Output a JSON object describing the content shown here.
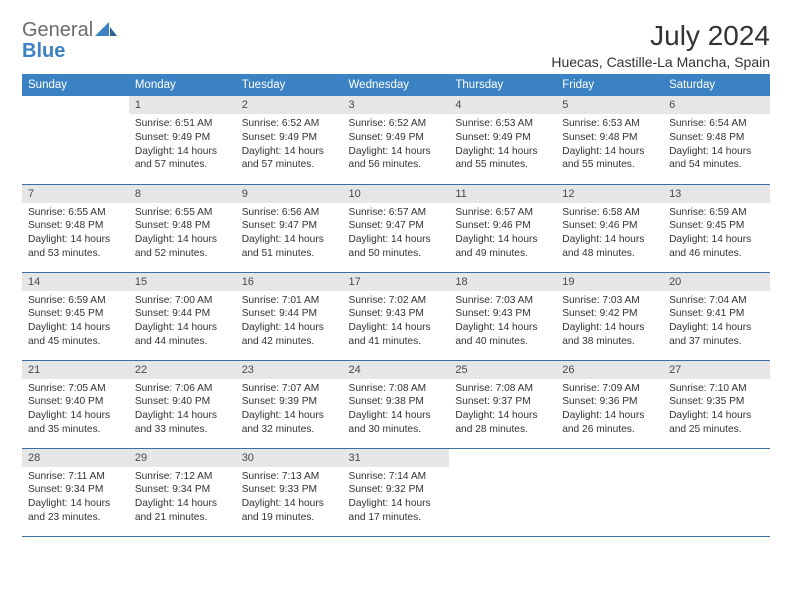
{
  "logo": {
    "part1": "General",
    "part2": "Blue"
  },
  "title": "July 2024",
  "location": "Huecas, Castille-La Mancha, Spain",
  "colors": {
    "header_bg": "#3b82c4",
    "header_text": "#ffffff",
    "daynum_bg": "#e6e6e6",
    "border": "#3b6fa0",
    "logo_gray": "#6b6b6b",
    "logo_blue": "#3b82c4"
  },
  "weekdays": [
    "Sunday",
    "Monday",
    "Tuesday",
    "Wednesday",
    "Thursday",
    "Friday",
    "Saturday"
  ],
  "weeks": [
    [
      null,
      {
        "n": "1",
        "sr": "6:51 AM",
        "ss": "9:49 PM",
        "dl": "14 hours and 57 minutes."
      },
      {
        "n": "2",
        "sr": "6:52 AM",
        "ss": "9:49 PM",
        "dl": "14 hours and 57 minutes."
      },
      {
        "n": "3",
        "sr": "6:52 AM",
        "ss": "9:49 PM",
        "dl": "14 hours and 56 minutes."
      },
      {
        "n": "4",
        "sr": "6:53 AM",
        "ss": "9:49 PM",
        "dl": "14 hours and 55 minutes."
      },
      {
        "n": "5",
        "sr": "6:53 AM",
        "ss": "9:48 PM",
        "dl": "14 hours and 55 minutes."
      },
      {
        "n": "6",
        "sr": "6:54 AM",
        "ss": "9:48 PM",
        "dl": "14 hours and 54 minutes."
      }
    ],
    [
      {
        "n": "7",
        "sr": "6:55 AM",
        "ss": "9:48 PM",
        "dl": "14 hours and 53 minutes."
      },
      {
        "n": "8",
        "sr": "6:55 AM",
        "ss": "9:48 PM",
        "dl": "14 hours and 52 minutes."
      },
      {
        "n": "9",
        "sr": "6:56 AM",
        "ss": "9:47 PM",
        "dl": "14 hours and 51 minutes."
      },
      {
        "n": "10",
        "sr": "6:57 AM",
        "ss": "9:47 PM",
        "dl": "14 hours and 50 minutes."
      },
      {
        "n": "11",
        "sr": "6:57 AM",
        "ss": "9:46 PM",
        "dl": "14 hours and 49 minutes."
      },
      {
        "n": "12",
        "sr": "6:58 AM",
        "ss": "9:46 PM",
        "dl": "14 hours and 48 minutes."
      },
      {
        "n": "13",
        "sr": "6:59 AM",
        "ss": "9:45 PM",
        "dl": "14 hours and 46 minutes."
      }
    ],
    [
      {
        "n": "14",
        "sr": "6:59 AM",
        "ss": "9:45 PM",
        "dl": "14 hours and 45 minutes."
      },
      {
        "n": "15",
        "sr": "7:00 AM",
        "ss": "9:44 PM",
        "dl": "14 hours and 44 minutes."
      },
      {
        "n": "16",
        "sr": "7:01 AM",
        "ss": "9:44 PM",
        "dl": "14 hours and 42 minutes."
      },
      {
        "n": "17",
        "sr": "7:02 AM",
        "ss": "9:43 PM",
        "dl": "14 hours and 41 minutes."
      },
      {
        "n": "18",
        "sr": "7:03 AM",
        "ss": "9:43 PM",
        "dl": "14 hours and 40 minutes."
      },
      {
        "n": "19",
        "sr": "7:03 AM",
        "ss": "9:42 PM",
        "dl": "14 hours and 38 minutes."
      },
      {
        "n": "20",
        "sr": "7:04 AM",
        "ss": "9:41 PM",
        "dl": "14 hours and 37 minutes."
      }
    ],
    [
      {
        "n": "21",
        "sr": "7:05 AM",
        "ss": "9:40 PM",
        "dl": "14 hours and 35 minutes."
      },
      {
        "n": "22",
        "sr": "7:06 AM",
        "ss": "9:40 PM",
        "dl": "14 hours and 33 minutes."
      },
      {
        "n": "23",
        "sr": "7:07 AM",
        "ss": "9:39 PM",
        "dl": "14 hours and 32 minutes."
      },
      {
        "n": "24",
        "sr": "7:08 AM",
        "ss": "9:38 PM",
        "dl": "14 hours and 30 minutes."
      },
      {
        "n": "25",
        "sr": "7:08 AM",
        "ss": "9:37 PM",
        "dl": "14 hours and 28 minutes."
      },
      {
        "n": "26",
        "sr": "7:09 AM",
        "ss": "9:36 PM",
        "dl": "14 hours and 26 minutes."
      },
      {
        "n": "27",
        "sr": "7:10 AM",
        "ss": "9:35 PM",
        "dl": "14 hours and 25 minutes."
      }
    ],
    [
      {
        "n": "28",
        "sr": "7:11 AM",
        "ss": "9:34 PM",
        "dl": "14 hours and 23 minutes."
      },
      {
        "n": "29",
        "sr": "7:12 AM",
        "ss": "9:34 PM",
        "dl": "14 hours and 21 minutes."
      },
      {
        "n": "30",
        "sr": "7:13 AM",
        "ss": "9:33 PM",
        "dl": "14 hours and 19 minutes."
      },
      {
        "n": "31",
        "sr": "7:14 AM",
        "ss": "9:32 PM",
        "dl": "14 hours and 17 minutes."
      },
      null,
      null,
      null
    ]
  ],
  "labels": {
    "sunrise": "Sunrise:",
    "sunset": "Sunset:",
    "daylight": "Daylight:"
  }
}
